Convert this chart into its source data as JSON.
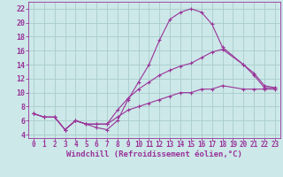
{
  "background_color": "#cce8e8",
  "grid_color": "#aacccc",
  "line_color": "#993399",
  "marker": "+",
  "xlabel": "Windchill (Refroidissement éolien,°C)",
  "xlabel_fontsize": 6.5,
  "xtick_fontsize": 5.5,
  "ytick_fontsize": 6,
  "xlim": [
    -0.5,
    23.5
  ],
  "ylim": [
    3.5,
    23
  ],
  "yticks": [
    4,
    6,
    8,
    10,
    12,
    14,
    16,
    18,
    20,
    22
  ],
  "xticks": [
    0,
    1,
    2,
    3,
    4,
    5,
    6,
    7,
    8,
    9,
    10,
    11,
    12,
    13,
    14,
    15,
    16,
    17,
    18,
    19,
    20,
    21,
    22,
    23
  ],
  "curve1_x": [
    0,
    1,
    2,
    3,
    4,
    5,
    6,
    7,
    8,
    9,
    10,
    11,
    12,
    13,
    14,
    15,
    16,
    17,
    18,
    20,
    21,
    22,
    23
  ],
  "curve1_y": [
    7,
    6.5,
    6.5,
    4.7,
    6,
    5.5,
    5.0,
    4.7,
    6.0,
    9.0,
    11.5,
    14.0,
    17.5,
    20.5,
    21.5,
    22.0,
    21.5,
    19.8,
    16.5,
    14.0,
    12.5,
    10.7,
    10.7
  ],
  "curve2_x": [
    0,
    1,
    2,
    3,
    4,
    5,
    6,
    7,
    8,
    9,
    10,
    11,
    12,
    13,
    14,
    15,
    16,
    17,
    18,
    20,
    21,
    22,
    23
  ],
  "curve2_y": [
    7,
    6.5,
    6.5,
    4.7,
    6,
    5.5,
    5.5,
    5.5,
    7.5,
    9.2,
    10.5,
    11.5,
    12.5,
    13.2,
    13.8,
    14.2,
    15.0,
    15.8,
    16.2,
    14.0,
    12.8,
    11.0,
    10.7
  ],
  "curve3_x": [
    0,
    1,
    2,
    3,
    4,
    5,
    6,
    7,
    8,
    9,
    10,
    11,
    12,
    13,
    14,
    15,
    16,
    17,
    18,
    20,
    21,
    22,
    23
  ],
  "curve3_y": [
    7,
    6.5,
    6.5,
    4.7,
    6,
    5.5,
    5.5,
    5.5,
    6.5,
    7.5,
    8.0,
    8.5,
    9.0,
    9.5,
    10.0,
    10.0,
    10.5,
    10.5,
    11.0,
    10.5,
    10.5,
    10.5,
    10.5
  ]
}
